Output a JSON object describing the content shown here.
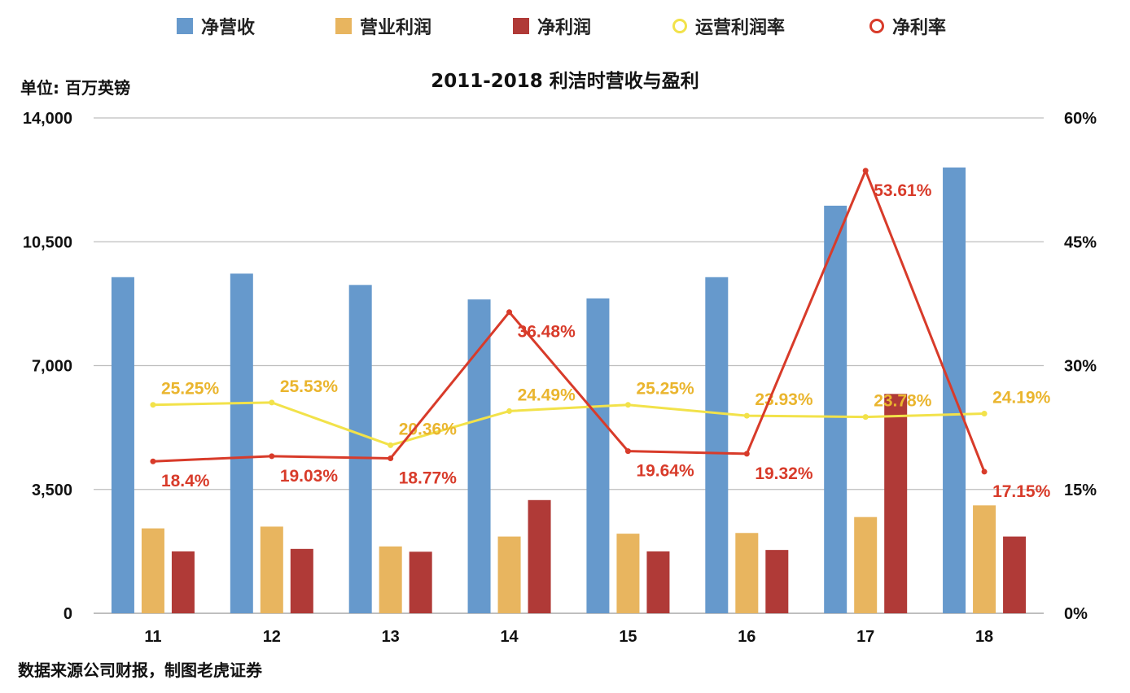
{
  "legend": {
    "revenue": "净营收",
    "op_profit": "营业利润",
    "net_profit": "净利润",
    "op_margin": "运营利润率",
    "net_margin": "净利率"
  },
  "unit_label": "单位: 百万英镑",
  "source_note": "数据来源公司财报，制图老虎证券",
  "colors": {
    "revenue": "#6699cc",
    "op_profit": "#e8b55f",
    "net_profit": "#b03a37",
    "op_margin": "#f2e24a",
    "net_margin": "#d83b2a",
    "op_margin_label": "#eab52e",
    "net_margin_label": "#d83b2a",
    "grid": "#bdbdbd"
  },
  "chart_data": {
    "type": "bar",
    "title": "2011-2018 利洁时营收与盈利",
    "categories": [
      "11",
      "12",
      "13",
      "14",
      "15",
      "16",
      "17",
      "18"
    ],
    "series": [
      {
        "name": "净营收",
        "type": "bar",
        "axis": "left",
        "values": [
          9500,
          9600,
          9280,
          8870,
          8900,
          9500,
          11520,
          12600
        ]
      },
      {
        "name": "营业利润",
        "type": "bar",
        "axis": "left",
        "values": [
          2400,
          2450,
          1890,
          2170,
          2250,
          2270,
          2720,
          3050
        ]
      },
      {
        "name": "净利润",
        "type": "bar",
        "axis": "left",
        "values": [
          1750,
          1820,
          1740,
          3200,
          1750,
          1790,
          6200,
          2170
        ]
      },
      {
        "name": "运营利润率",
        "type": "line",
        "axis": "right",
        "values": [
          25.25,
          25.53,
          20.36,
          24.49,
          25.25,
          23.93,
          23.78,
          24.19
        ],
        "labels": [
          "25.25%",
          "25.53%",
          "20.36%",
          "24.49%",
          "25.25%",
          "23.93%",
          "23.78%",
          "24.19%"
        ]
      },
      {
        "name": "净利率",
        "type": "line",
        "axis": "right",
        "values": [
          18.4,
          19.03,
          18.77,
          36.48,
          19.64,
          19.32,
          53.61,
          17.15
        ],
        "labels": [
          "18.4%",
          "19.03%",
          "18.77%",
          "36.48%",
          "19.64%",
          "19.32%",
          "53.61%",
          "17.15%"
        ]
      }
    ],
    "left_axis": {
      "ylim": [
        0,
        14000
      ],
      "ticks": [
        0,
        3500,
        7000,
        10500,
        14000
      ],
      "tick_labels": [
        "0",
        "3,500",
        "7,000",
        "10,500",
        "14,000"
      ]
    },
    "right_axis": {
      "ylim": [
        0,
        60
      ],
      "ticks": [
        0,
        15,
        30,
        45,
        60
      ],
      "tick_labels": [
        "0%",
        "15%",
        "30%",
        "45%",
        "60%"
      ]
    },
    "xlabel": "",
    "ylabel": "单位: 百万英镑",
    "grid": true,
    "legend_position": "top"
  }
}
